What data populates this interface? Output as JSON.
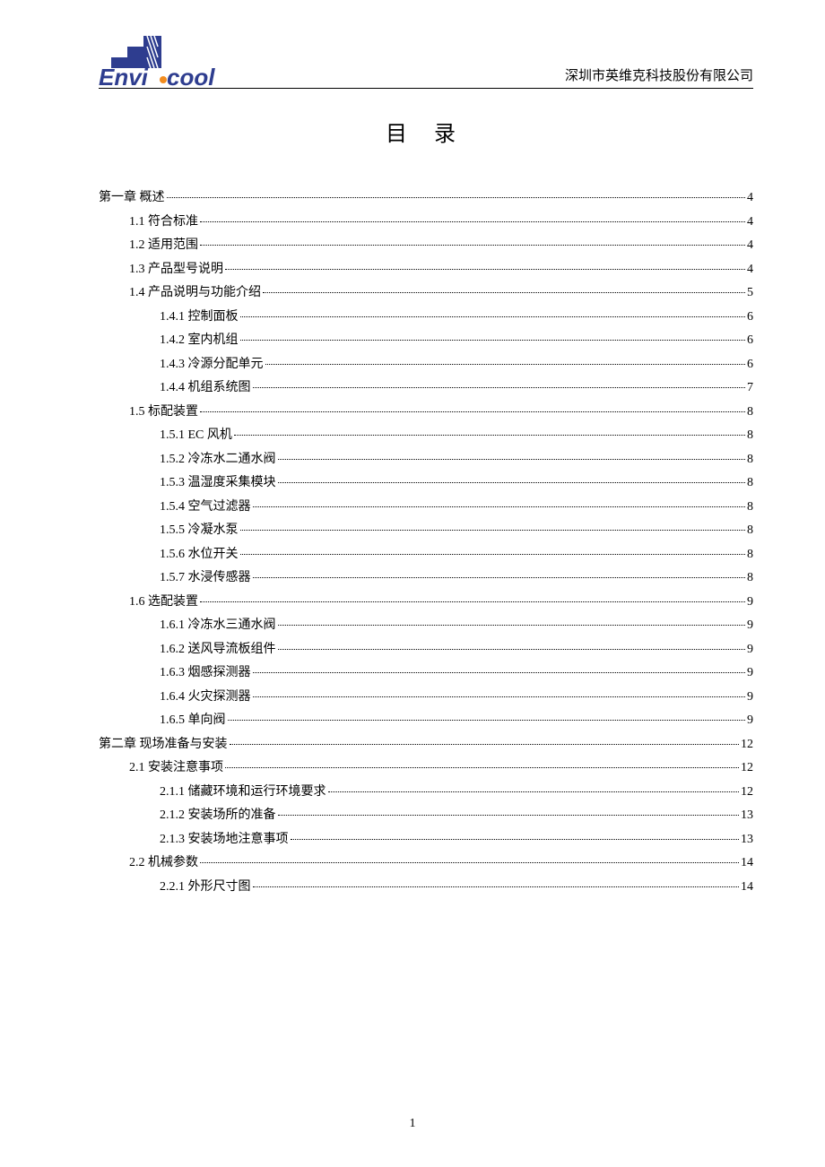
{
  "header": {
    "company_name": "深圳市英维克科技股份有限公司",
    "logo_text_envi": "Envi",
    "logo_text_cool": "cool"
  },
  "title": "目 录",
  "toc": [
    {
      "level": 0,
      "label": "第一章  概述",
      "page": "4"
    },
    {
      "level": 1,
      "label": "1.1 符合标准",
      "page": "4"
    },
    {
      "level": 1,
      "label": "1.2 适用范围",
      "page": "4"
    },
    {
      "level": 1,
      "label": "1.3 产品型号说明",
      "page": "4"
    },
    {
      "level": 1,
      "label": "1.4 产品说明与功能介绍",
      "page": "5"
    },
    {
      "level": 2,
      "label": "1.4.1 控制面板",
      "page": "6"
    },
    {
      "level": 2,
      "label": "1.4.2 室内机组",
      "page": "6"
    },
    {
      "level": 2,
      "label": "1.4.3 冷源分配单元",
      "page": "6"
    },
    {
      "level": 2,
      "label": "1.4.4 机组系统图",
      "page": "7"
    },
    {
      "level": 1,
      "label": "1.5 标配装置",
      "page": "8"
    },
    {
      "level": 2,
      "label": "1.5.1  EC 风机",
      "page": "8"
    },
    {
      "level": 2,
      "label": "1.5.2   冷冻水二通水阀 ",
      "page": "8"
    },
    {
      "level": 2,
      "label": "1.5.3   温湿度采集模块 ",
      "page": "8"
    },
    {
      "level": 2,
      "label": "1.5.4   空气过滤器",
      "page": "8"
    },
    {
      "level": 2,
      "label": "1.5.5   冷凝水泵",
      "page": "8"
    },
    {
      "level": 2,
      "label": "1.5.6   水位开关",
      "page": "8"
    },
    {
      "level": 2,
      "label": "1.5.7   水浸传感器",
      "page": "8"
    },
    {
      "level": 1,
      "label": "1.6 选配装置",
      "page": "9"
    },
    {
      "level": 2,
      "label": "1.6.1  冷冻水三通水阀 ",
      "page": "9"
    },
    {
      "level": 2,
      "label": "1.6.2  送风导流板组件 ",
      "page": "9"
    },
    {
      "level": 2,
      "label": "1.6.3  烟感探测器",
      "page": "9"
    },
    {
      "level": 2,
      "label": "1.6.4  火灾探测器",
      "page": "9"
    },
    {
      "level": 2,
      "label": "1.6.5  单向阀",
      "page": "9"
    },
    {
      "level": 0,
      "label": "第二章  现场准备与安装",
      "page": "12"
    },
    {
      "level": 1,
      "label": "2.1 安装注意事项",
      "page": "12"
    },
    {
      "level": 2,
      "label": "2.1.1  储藏环境和运行环境要求 ",
      "page": "12"
    },
    {
      "level": 2,
      "label": "2.1.2  安装场所的准备 ",
      "page": "13"
    },
    {
      "level": 2,
      "label": "2.1.3  安装场地注意事项 ",
      "page": "13"
    },
    {
      "level": 1,
      "label": "2.2 机械参数",
      "page": "14"
    },
    {
      "level": 2,
      "label": "2.2.1 外形尺寸图",
      "page": "14"
    }
  ],
  "footer": {
    "page_number": "1"
  },
  "colors": {
    "logo_blue": "#2e3d8f",
    "logo_orange": "#f28c1e",
    "text": "#000000",
    "background": "#ffffff"
  }
}
